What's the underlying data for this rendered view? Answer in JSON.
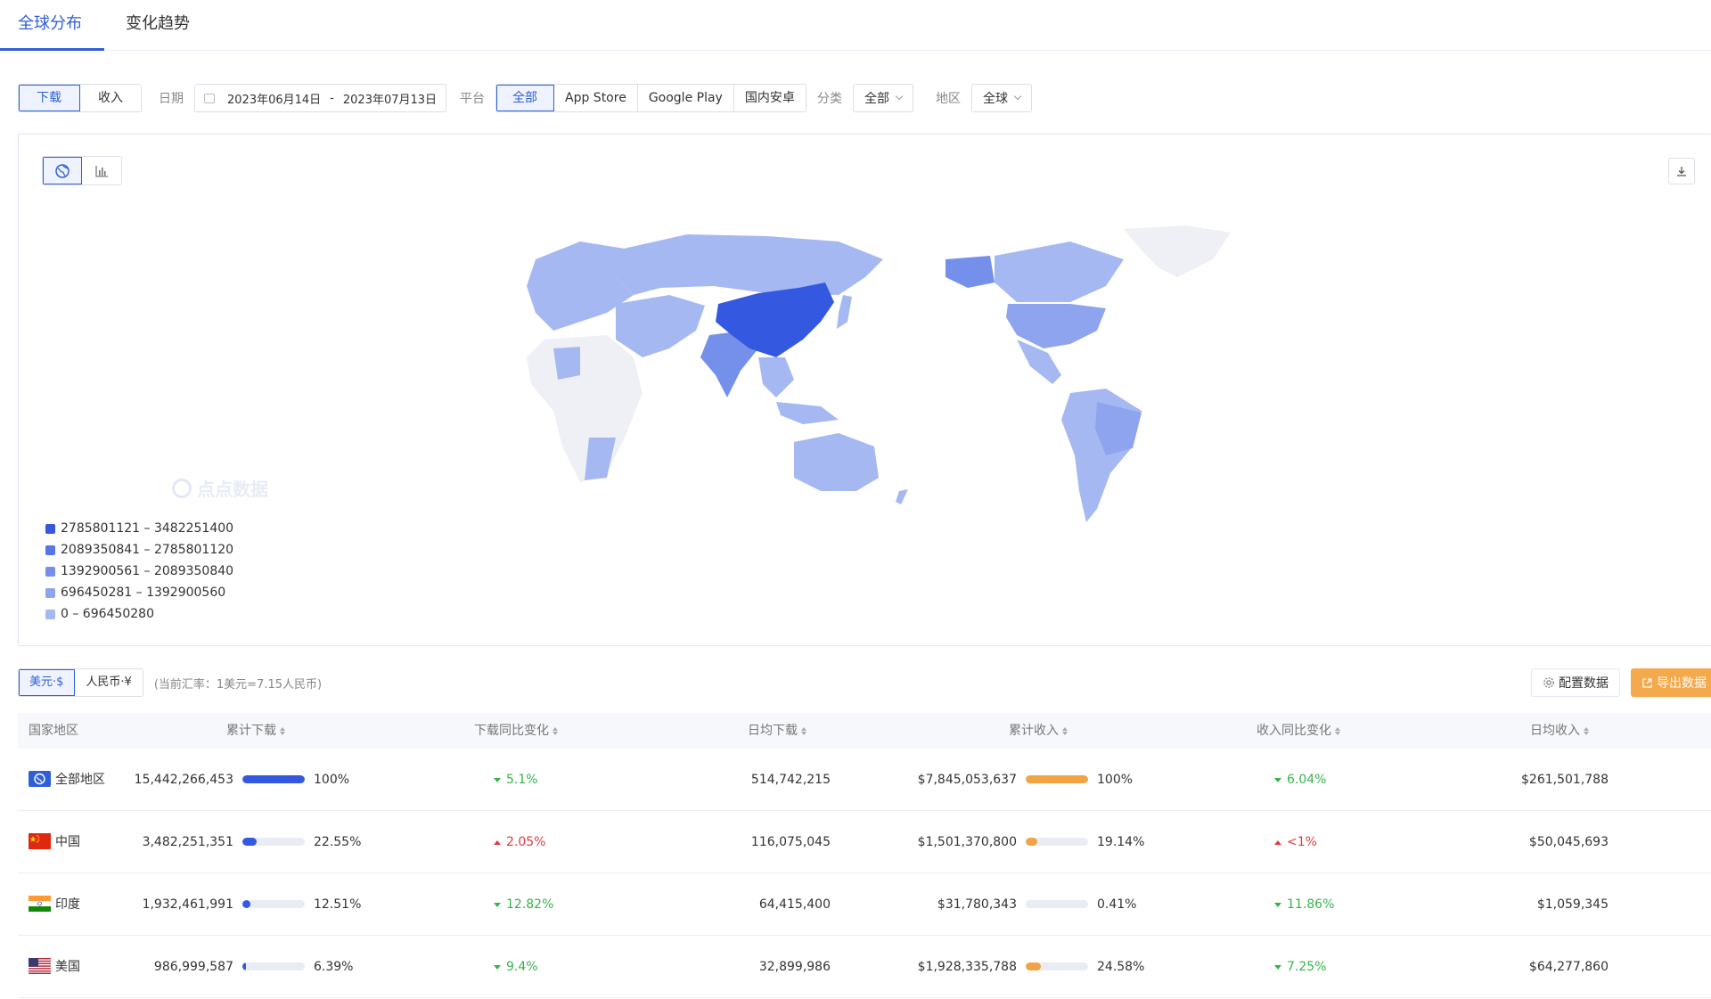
{
  "tabs": [
    {
      "label": "全球分布",
      "active": true
    },
    {
      "label": "变化趋势",
      "active": false
    }
  ],
  "filters": {
    "metric": [
      "下载",
      "收入"
    ],
    "metric_selected": "下载",
    "date_label": "日期",
    "date_start": "2023年06月14日",
    "date_sep": "-",
    "date_end": "2023年07月13日",
    "platform_label": "平台",
    "platforms": [
      "全部",
      "App Store",
      "Google Play",
      "国内安卓"
    ],
    "platform_selected": "全部",
    "category_label": "分类",
    "category_value": "全部",
    "region_label": "地区",
    "region_value": "全球"
  },
  "map": {
    "watermark": "点点数据",
    "legend": [
      {
        "label": "2785801121 – 3482251400",
        "color": "#3558e0"
      },
      {
        "label": "2089350841 – 2785801120",
        "color": "#5577e6"
      },
      {
        "label": "1392900561 – 2089350840",
        "color": "#7590ea"
      },
      {
        "label": "696450281 – 1392900560",
        "color": "#8ea4ee"
      },
      {
        "label": "0 – 696450280",
        "color": "#a5b8f2"
      }
    ]
  },
  "currency": {
    "options": [
      "美元·$",
      "人民币·¥"
    ],
    "selected": "美元·$",
    "rate_note": "(当前汇率：1美元=7.15人民币)"
  },
  "actions": {
    "config_label": "配置数据",
    "export_label": "导出数据"
  },
  "table": {
    "headers": [
      "国家地区",
      "累计下载",
      "下载同比变化",
      "日均下载",
      "累计收入",
      "收入同比变化",
      "日均收入"
    ],
    "rows": [
      {
        "flag": "globe",
        "name": "全部地区",
        "downloads": "15,442,266,453",
        "dl_share": "100%",
        "dl_share_value": 100,
        "dl_change": "5.1%",
        "dl_dir": "down",
        "daily_dl": "514,742,215",
        "revenue": "$7,845,053,637",
        "rev_share": "100%",
        "rev_share_value": 100,
        "rev_change": "6.04%",
        "rev_dir": "down",
        "daily_rev": "$261,501,788"
      },
      {
        "flag": "cn",
        "name": "中国",
        "downloads": "3,482,251,351",
        "dl_share": "22.55%",
        "dl_share_value": 22.55,
        "dl_change": "2.05%",
        "dl_dir": "up",
        "daily_dl": "116,075,045",
        "revenue": "$1,501,370,800",
        "rev_share": "19.14%",
        "rev_share_value": 19.14,
        "rev_change": "<1%",
        "rev_dir": "up",
        "daily_rev": "$50,045,693"
      },
      {
        "flag": "in",
        "name": "印度",
        "downloads": "1,932,461,991",
        "dl_share": "12.51%",
        "dl_share_value": 12.51,
        "dl_change": "12.82%",
        "dl_dir": "down",
        "daily_dl": "64,415,400",
        "revenue": "$31,780,343",
        "rev_share": "0.41%",
        "rev_share_value": 0.41,
        "rev_change": "11.86%",
        "rev_dir": "down",
        "daily_rev": "$1,059,345"
      },
      {
        "flag": "us",
        "name": "美国",
        "downloads": "986,999,587",
        "dl_share": "6.39%",
        "dl_share_value": 6.39,
        "dl_change": "9.4%",
        "dl_dir": "down",
        "daily_dl": "32,899,986",
        "revenue": "$1,928,335,788",
        "rev_share": "24.58%",
        "rev_share_value": 24.58,
        "rev_change": "7.25%",
        "rev_dir": "down",
        "daily_rev": "$64,277,860"
      }
    ]
  },
  "colors": {
    "accent": "#2f5fd6",
    "dl_bar": "#3558e0",
    "rev_bar": "#f0a443",
    "up": "#e0393e",
    "down": "#38b24a"
  }
}
